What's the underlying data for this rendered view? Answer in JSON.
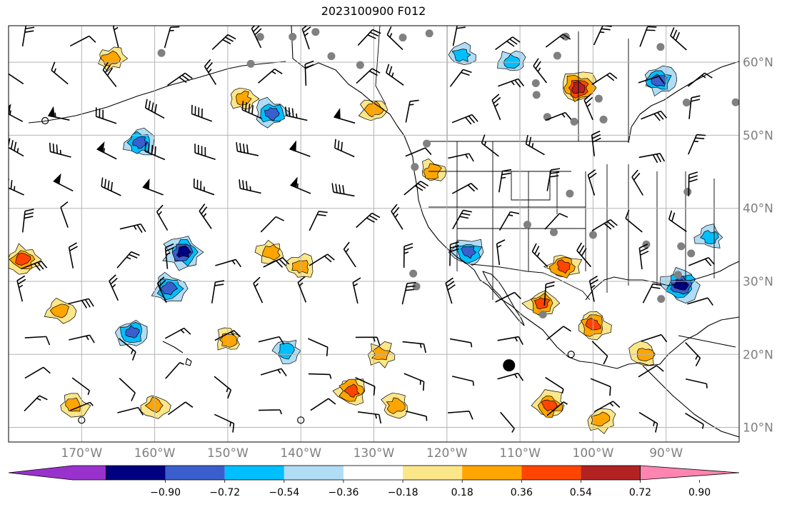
{
  "title": "2023100900 F012",
  "map": {
    "lon_range": [
      -180,
      -80
    ],
    "lat_range": [
      8,
      65
    ],
    "lon_labels": [
      "170°W",
      "160°W",
      "150°W",
      "140°W",
      "130°W",
      "120°W",
      "110°W",
      "100°W",
      "90°W"
    ],
    "lat_labels": [
      "10°N",
      "20°N",
      "30°N",
      "40°N",
      "50°N",
      "60°N"
    ],
    "gridlines": true,
    "label_color": "#7f7f7f"
  },
  "colorbar": {
    "tick_labels": [
      "−0.90",
      "−0.72",
      "−0.54",
      "−0.36",
      "−0.18",
      "0.18",
      "0.36",
      "0.54",
      "0.72",
      "0.90"
    ],
    "colors": [
      "#9932cc",
      "#000080",
      "#3a5fcd",
      "#00bfff",
      "#b0dcf5",
      "#ffffff",
      "#fce68a",
      "#ffa500",
      "#ff4500",
      "#b22222",
      "#ff85b0"
    ],
    "extend": "both"
  },
  "chart_data": {
    "type": "heatmap",
    "title": "2023100900 F012",
    "xlabel": "",
    "ylabel": "",
    "xlim": [
      -180,
      -80
    ],
    "ylim": [
      8,
      65
    ],
    "levels": [
      -0.9,
      -0.72,
      -0.54,
      -0.36,
      -0.18,
      0.18,
      0.36,
      0.54,
      0.72,
      0.9
    ],
    "positive_areas": [
      {
        "lon": -102,
        "lat": 56.5,
        "level": 0.72
      },
      {
        "lon": -166,
        "lat": 60.5,
        "level": 0.36
      },
      {
        "lon": -178,
        "lat": 33,
        "level": 0.54
      },
      {
        "lon": -148,
        "lat": 55,
        "level": 0.36
      },
      {
        "lon": -130,
        "lat": 53.5,
        "level": 0.36
      },
      {
        "lon": -140,
        "lat": 32,
        "level": 0.36
      },
      {
        "lon": -144,
        "lat": 34,
        "level": 0.36
      },
      {
        "lon": -104,
        "lat": 32,
        "level": 0.54
      },
      {
        "lon": -107,
        "lat": 27,
        "level": 0.54
      },
      {
        "lon": -100,
        "lat": 24,
        "level": 0.54
      },
      {
        "lon": -93,
        "lat": 20,
        "level": 0.36
      },
      {
        "lon": -133,
        "lat": 15,
        "level": 0.54
      },
      {
        "lon": -127,
        "lat": 13,
        "level": 0.36
      },
      {
        "lon": -106,
        "lat": 13,
        "level": 0.54
      },
      {
        "lon": -99,
        "lat": 11,
        "level": 0.36
      },
      {
        "lon": -171,
        "lat": 13,
        "level": 0.36
      },
      {
        "lon": -160,
        "lat": 13,
        "level": 0.36
      },
      {
        "lon": -150,
        "lat": 22,
        "level": 0.36
      },
      {
        "lon": -173,
        "lat": 26,
        "level": 0.36
      },
      {
        "lon": -122,
        "lat": 45,
        "level": 0.36
      },
      {
        "lon": -129,
        "lat": 20,
        "level": 0.36
      }
    ],
    "negative_areas": [
      {
        "lon": -162,
        "lat": 49,
        "level": -0.54
      },
      {
        "lon": -156,
        "lat": 34,
        "level": -0.72
      },
      {
        "lon": -144,
        "lat": 53,
        "level": -0.54
      },
      {
        "lon": -118,
        "lat": 61,
        "level": -0.36
      },
      {
        "lon": -91,
        "lat": 57.5,
        "level": -0.54
      },
      {
        "lon": -88,
        "lat": 29.5,
        "level": -0.72
      },
      {
        "lon": -117,
        "lat": 34,
        "level": -0.54
      },
      {
        "lon": -163,
        "lat": 23,
        "level": -0.54
      },
      {
        "lon": -142,
        "lat": 20.5,
        "level": -0.36
      },
      {
        "lon": -111,
        "lat": 60,
        "level": -0.36
      },
      {
        "lon": -84,
        "lat": 36,
        "level": -0.36
      },
      {
        "lon": -158,
        "lat": 29,
        "level": -0.54
      }
    ]
  }
}
